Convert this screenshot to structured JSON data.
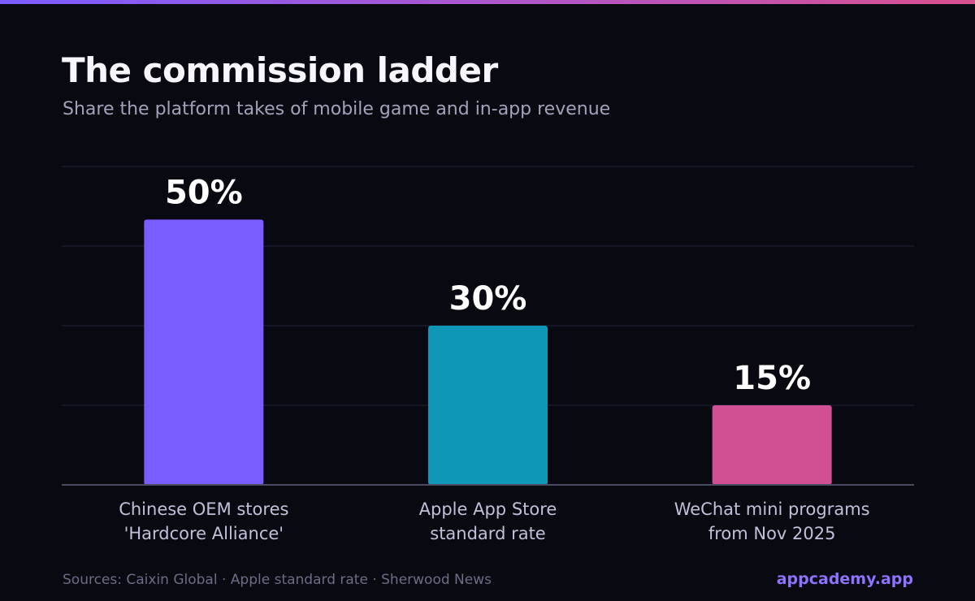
{
  "header": {
    "title": "The commission ladder",
    "subtitle": "Share the platform takes of mobile game and in-app revenue"
  },
  "footer": {
    "sources": "Sources: Caixin Global · Apple standard rate · Sherwood News",
    "brand": "appcademy.app"
  },
  "colors": {
    "background": "#090912",
    "grid": "#24243a",
    "axis": "#4a4a60",
    "label": "#c2c0d8",
    "value_label": "#ffffff"
  },
  "chart_data": {
    "type": "bar",
    "categories": [
      [
        "Chinese OEM stores",
        "'Hardcore Alliance'"
      ],
      [
        "Apple App Store",
        "standard rate"
      ],
      [
        "WeChat mini programs",
        "from Nov 2025"
      ]
    ],
    "values": [
      50,
      30,
      15
    ],
    "value_labels": [
      "50%",
      "30%",
      "15%"
    ],
    "bar_colors": [
      "#7b5cff",
      "#0e97b6",
      "#d14f95"
    ],
    "ylim": [
      0,
      60
    ],
    "grid": true,
    "gridline_values": [
      15,
      30,
      45,
      60
    ]
  }
}
